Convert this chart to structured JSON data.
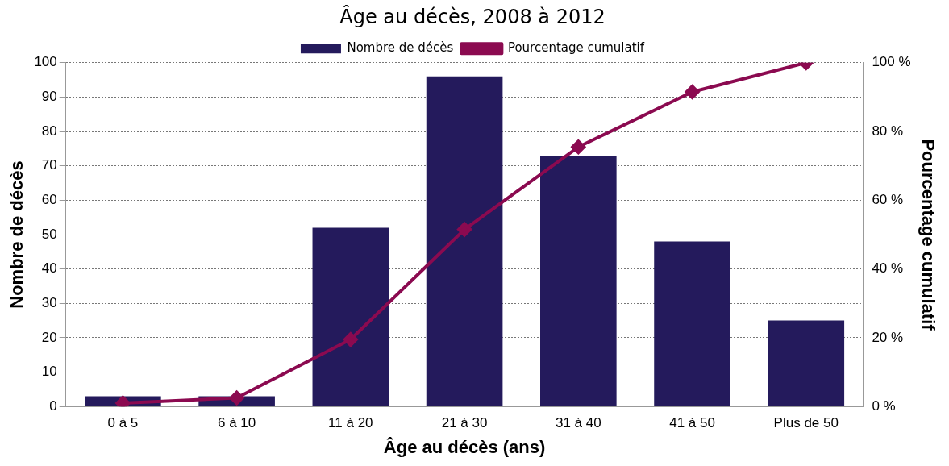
{
  "chart_data": {
    "type": "bar",
    "title": "Âge au décès, 2008 à 2012",
    "xlabel": "Âge au décès (ans)",
    "ylabel": "Nombre de décès",
    "y2label": "Pourcentage cumulatif",
    "categories": [
      "0 à 5",
      "6 à 10",
      "11 à 20",
      "21 à 30",
      "31 à 40",
      "41 à 50",
      "Plus de 50"
    ],
    "series": [
      {
        "name": "Nombre de décès",
        "color": "#241a5c",
        "values": [
          3,
          3,
          52,
          96,
          73,
          48,
          25
        ]
      },
      {
        "name": "Pourcentage cumulatif",
        "type": "line",
        "axis": "y2",
        "color": "#8b0a50",
        "marker": "diamond",
        "values": [
          1,
          2.5,
          19.5,
          51.5,
          75.5,
          91.5,
          100
        ]
      }
    ],
    "ylim": [
      0,
      100
    ],
    "yticks": [
      0,
      10,
      20,
      30,
      40,
      50,
      60,
      70,
      80,
      90,
      100
    ],
    "y2lim": [
      0,
      100
    ],
    "y2ticks": [
      {
        "value": 0,
        "label": "0 %"
      },
      {
        "value": 20,
        "label": "20 %"
      },
      {
        "value": 40,
        "label": "40 %"
      },
      {
        "value": 60,
        "label": "60 %"
      },
      {
        "value": 80,
        "label": "80 %"
      },
      {
        "value": 100,
        "label": "100 %"
      }
    ],
    "grid": "y",
    "legend": "top"
  }
}
